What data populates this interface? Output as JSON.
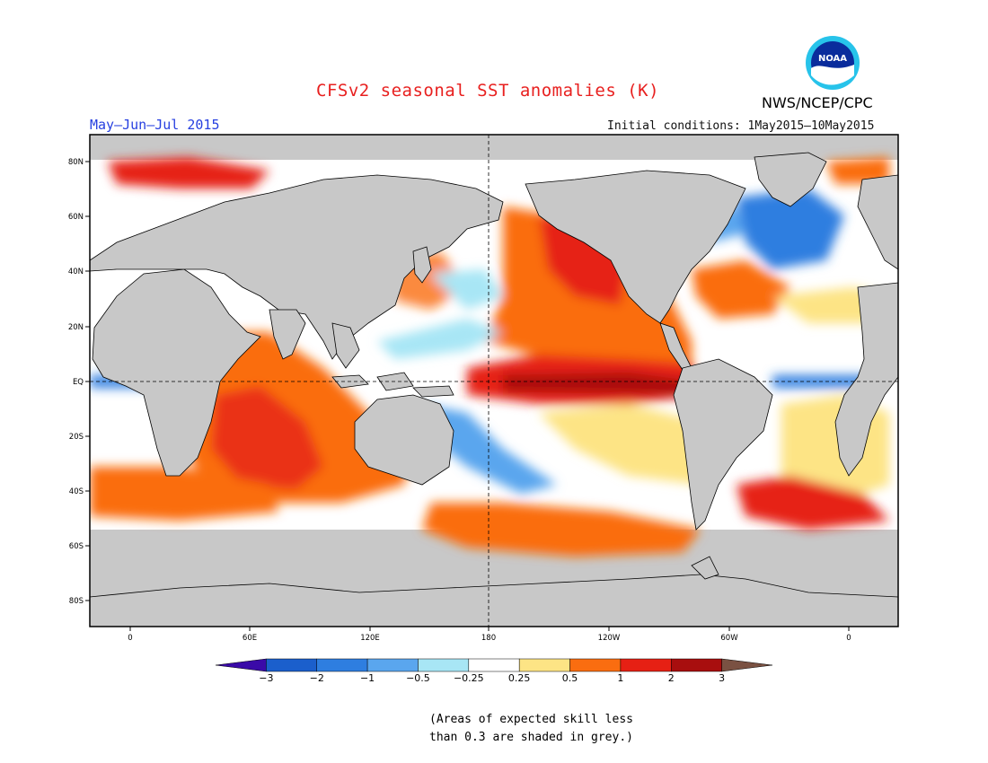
{
  "title": "CFSv2 seasonal SST anomalies (K)",
  "season": "May–Jun–Jul 2015",
  "initial_conditions": "Initial conditions: 1May2015–10May2015",
  "agency": "NWS/NCEP/CPC",
  "logo_text": "NOAA",
  "map": {
    "lon_labels": [
      "0",
      "60E",
      "120E",
      "180",
      "120W",
      "60W",
      "0"
    ],
    "lat_labels": [
      "80N",
      "60N",
      "40N",
      "20N",
      "EQ",
      "20S",
      "40S",
      "60S",
      "80S"
    ]
  },
  "legend": {
    "ticks": [
      "−3",
      "−2",
      "−1",
      "−0.5",
      "−0.25",
      "0.25",
      "0.5",
      "1",
      "2",
      "3"
    ],
    "colors": [
      "#3a0aa8",
      "#1b5fcc",
      "#2e7ee0",
      "#5aa6ee",
      "#a8e6f5",
      "#ffffff",
      "#fde485",
      "#fa6d10",
      "#e62014",
      "#a80e0e",
      "#7a5142"
    ]
  },
  "note": {
    "line1": "(Areas of expected skill less",
    "line2": "than 0.3 are shaded in grey.)"
  }
}
